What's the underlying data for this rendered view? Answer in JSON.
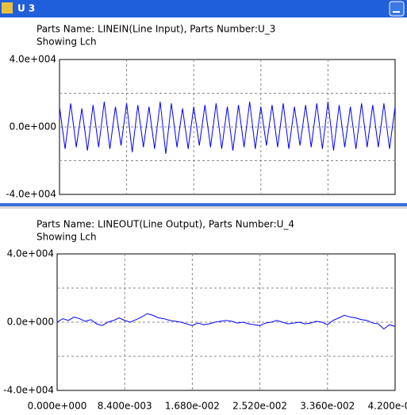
{
  "window": {
    "title": "U 3"
  },
  "chart_data": [
    {
      "type": "line",
      "title": "Parts Name: LINEIN(Line Input), Parts Number:U_3",
      "subtitle": "Showing Lch",
      "x": [
        0,
        0.0007,
        0.0014,
        0.0021,
        0.0028,
        0.0035,
        0.0042,
        0.0049,
        0.0056,
        0.0063,
        0.007,
        0.0077,
        0.0084,
        0.0091,
        0.0098,
        0.0105,
        0.0112,
        0.0119,
        0.0126,
        0.0133,
        0.014,
        0.0147,
        0.0154,
        0.0161,
        0.0168,
        0.0175,
        0.0182,
        0.0189,
        0.0196,
        0.0203,
        0.021,
        0.0217,
        0.0224,
        0.0231,
        0.0238,
        0.0245,
        0.0252,
        0.0259,
        0.0266,
        0.0273,
        0.028,
        0.0287,
        0.0294,
        0.0301,
        0.0308,
        0.0315,
        0.0322,
        0.0329,
        0.0336,
        0.0343,
        0.035,
        0.0357,
        0.0364,
        0.0371,
        0.0378,
        0.0385,
        0.0392,
        0.0399,
        0.0406,
        0.0413,
        0.042
      ],
      "values": [
        12000,
        -13000,
        14000,
        -12000,
        11000,
        -14000,
        13000,
        -12000,
        15000,
        -13000,
        12000,
        -11000,
        14000,
        -15000,
        13000,
        -12000,
        12000,
        -13000,
        15000,
        -16000,
        14000,
        -12000,
        11000,
        -13000,
        12000,
        -11000,
        13000,
        -12000,
        14000,
        -13000,
        12000,
        -14000,
        13000,
        -12000,
        15000,
        -13000,
        12000,
        -11000,
        13000,
        -12000,
        14000,
        -13000,
        12000,
        -11000,
        13000,
        -12000,
        14000,
        -13000,
        15000,
        -14000,
        13000,
        -12000,
        12000,
        -13000,
        14000,
        -12000,
        13000,
        -12000,
        14000,
        -13000,
        12000
      ],
      "color": "#0000ff",
      "xlim": [
        0,
        0.042
      ],
      "xticks": [
        0,
        0.0084,
        0.0168,
        0.0252,
        0.0336,
        0.042
      ],
      "x_tick_labels": false,
      "ylim": [
        -40000,
        40000
      ],
      "yticks": [
        {
          "value": 40000,
          "label": "4.0e+004"
        },
        {
          "value": 0,
          "label": "0.0e+000"
        },
        {
          "value": -40000,
          "label": "-4.0e+004"
        }
      ],
      "ygrid": [
        20000,
        -20000
      ],
      "grid": true
    },
    {
      "type": "line",
      "title": "Parts Name: LINEOUT(Line Output), Parts Number:U_4",
      "subtitle": "Showing Lch",
      "x": [
        0,
        0.0007,
        0.0014,
        0.0021,
        0.0028,
        0.0035,
        0.0042,
        0.0049,
        0.0056,
        0.0063,
        0.007,
        0.0077,
        0.0084,
        0.0091,
        0.0098,
        0.0105,
        0.0112,
        0.0119,
        0.0126,
        0.0133,
        0.014,
        0.0147,
        0.0154,
        0.0161,
        0.0168,
        0.0175,
        0.0182,
        0.0189,
        0.0196,
        0.0203,
        0.021,
        0.0217,
        0.0224,
        0.0231,
        0.0238,
        0.0245,
        0.0252,
        0.0259,
        0.0266,
        0.0273,
        0.028,
        0.0287,
        0.0294,
        0.0301,
        0.0308,
        0.0315,
        0.0322,
        0.0329,
        0.0336,
        0.0343,
        0.035,
        0.0357,
        0.0364,
        0.0371,
        0.0378,
        0.0385,
        0.0392,
        0.0399,
        0.0406,
        0.0413,
        0.042
      ],
      "values": [
        0,
        2000,
        1000,
        3000,
        2000,
        500,
        1500,
        -1000,
        -2000,
        0,
        1000,
        2500,
        1000,
        0,
        1500,
        3000,
        5000,
        4000,
        2500,
        2000,
        1000,
        500,
        0,
        -1000,
        -2000,
        -500,
        -1500,
        -1000,
        0,
        500,
        1000,
        500,
        -500,
        0,
        -1000,
        -1500,
        -2000,
        -500,
        0,
        1000,
        0,
        -1000,
        -500,
        0,
        -1000,
        -500,
        500,
        0,
        -1500,
        1000,
        2500,
        4000,
        3000,
        2500,
        1500,
        1000,
        -500,
        -1000,
        -4000,
        -1500,
        -2500
      ],
      "color": "#0000ff",
      "xlim": [
        0,
        0.042
      ],
      "xticks": [
        {
          "value": 0,
          "label": "0.000e+000"
        },
        {
          "value": 0.0084,
          "label": "8.400e-003"
        },
        {
          "value": 0.0168,
          "label": "1.680e-002"
        },
        {
          "value": 0.0252,
          "label": "2.520e-002"
        },
        {
          "value": 0.0336,
          "label": "3.360e-002"
        },
        {
          "value": 0.042,
          "label": "4.200e-002"
        }
      ],
      "x_tick_labels": true,
      "ylim": [
        -40000,
        40000
      ],
      "yticks": [
        {
          "value": 40000,
          "label": "4.0e+004"
        },
        {
          "value": 0,
          "label": "0.0e+000"
        },
        {
          "value": -40000,
          "label": "-4.0e+004"
        }
      ],
      "ygrid": [
        20000,
        -20000
      ],
      "grid": true
    }
  ]
}
